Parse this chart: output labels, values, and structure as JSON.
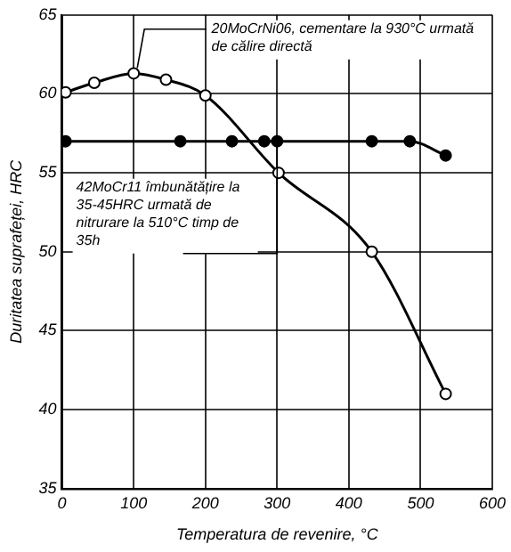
{
  "chart_data": {
    "type": "line",
    "xlabel": "Temperatura de revenire, °C",
    "ylabel": "Duritatea suprafeței, HRC",
    "xlim": [
      0,
      600
    ],
    "xticks": [
      0,
      100,
      200,
      300,
      400,
      500,
      600
    ],
    "ylim": [
      35,
      65
    ],
    "yticks": [
      35,
      40,
      45,
      50,
      55,
      60,
      65
    ],
    "grid": true,
    "marker": "circle",
    "line_style": "solid",
    "series": [
      {
        "color": "#000000",
        "x": [
          5,
          45,
          100,
          145,
          200,
          302,
          432,
          535
        ],
        "values": [
          60.1,
          60.7,
          61.3,
          60.9,
          59.9,
          55.0,
          50.0,
          41.0
        ]
      },
      {
        "color": "#000000",
        "x": [
          5,
          165,
          237,
          282,
          300,
          432,
          485,
          535
        ],
        "values": [
          57.0,
          57.0,
          57.0,
          57.0,
          57.0,
          57.0,
          57.0,
          56.1
        ]
      }
    ],
    "annotations": [
      {
        "text": "20MoCrNi06, cementare la 930°C urmată de călire directă",
        "x": 100,
        "y": 61.3
      },
      {
        "text": "42MoCr11 îmbunătățire la 35-45HRC urmată de nitrurare la 510°C timp de 35h",
        "x": 300,
        "y": 57.0
      }
    ]
  }
}
